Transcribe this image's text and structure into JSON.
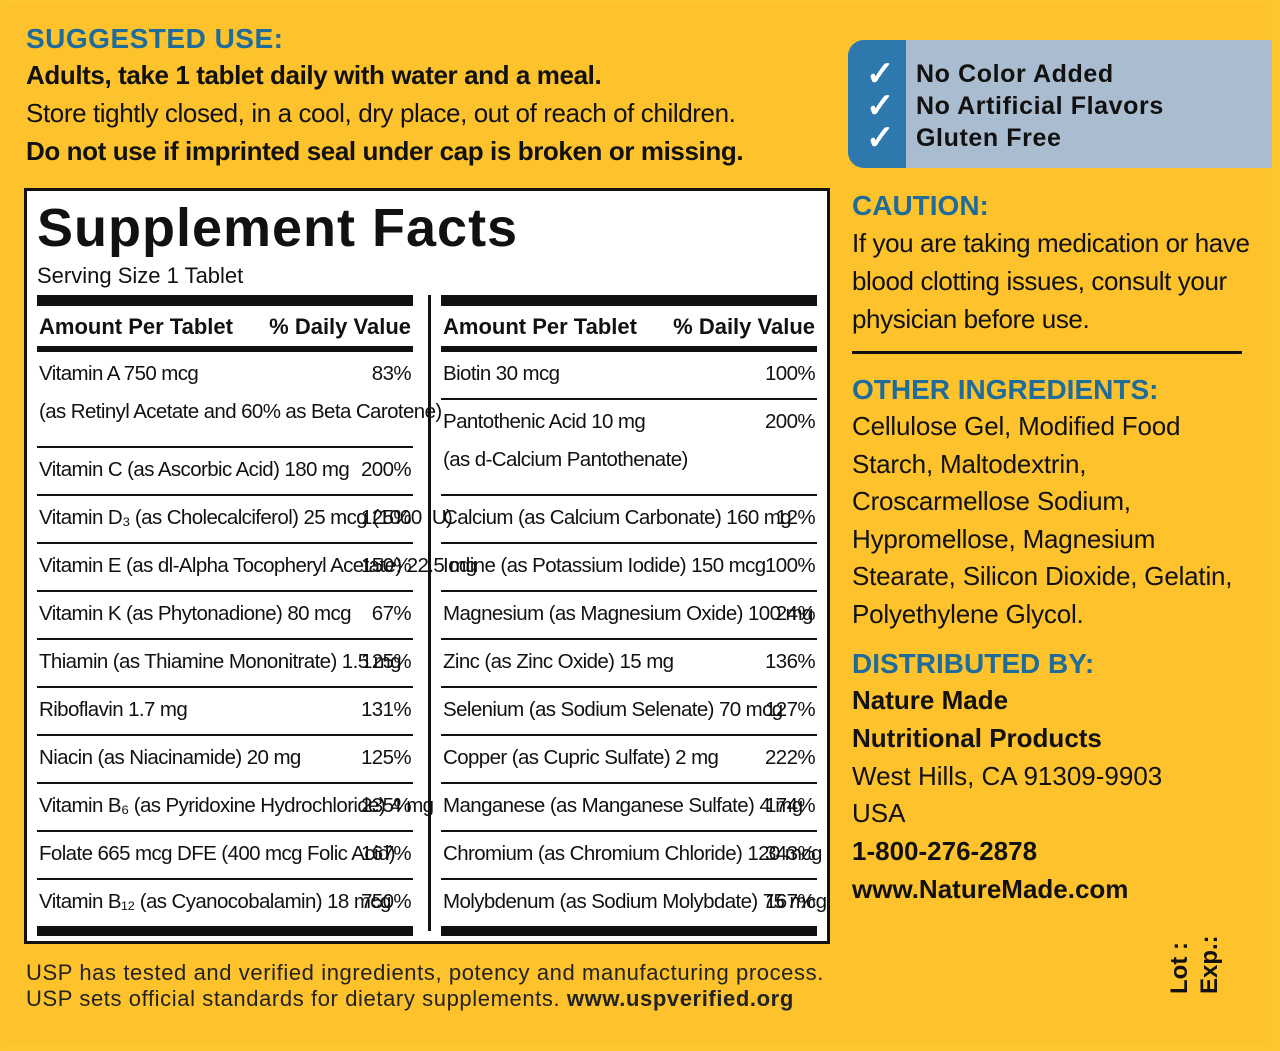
{
  "suggested_use": {
    "title": "SUGGESTED USE:",
    "line1": "Adults, take 1 tablet daily with water and a meal.",
    "line2": "Store tightly closed, in a cool, dry place, out of reach of children.",
    "line3": "Do not use if imprinted seal under cap is broken or missing."
  },
  "claims": [
    {
      "icon": "check-icon",
      "text": "No Color Added"
    },
    {
      "icon": "check-icon",
      "text": "No Artificial Flavors"
    },
    {
      "icon": "check-icon",
      "text": "Gluten Free"
    }
  ],
  "facts": {
    "title": "Supplement Facts",
    "serving_size": "Serving Size 1 Tablet",
    "header_amount": "Amount Per Tablet",
    "header_dv": "% Daily Value",
    "left": [
      {
        "name": "Vitamin A  750 mcg",
        "sub": "(as Retinyl Acetate and 60% as Beta Carotene)",
        "dv": "83%"
      },
      {
        "name": "Vitamin C (as Ascorbic Acid)  180 mg",
        "dv": "200%"
      },
      {
        "name": "Vitamin D₃ (as Cholecalciferol)  25 mcg (1000 IU)",
        "dv": "125%"
      },
      {
        "name": "Vitamin E (as dl-Alpha Tocopheryl Acetate)  22.5 mg",
        "dv": "150%"
      },
      {
        "name": "Vitamin K (as Phytonadione)  80 mcg",
        "dv": "67%"
      },
      {
        "name": "Thiamin (as Thiamine Mononitrate)  1.5 mg",
        "dv": "125%"
      },
      {
        "name": "Riboflavin  1.7 mg",
        "dv": "131%"
      },
      {
        "name": "Niacin (as Niacinamide)  20 mg",
        "dv": "125%"
      },
      {
        "name": "Vitamin B₆ (as Pyridoxine Hydrochloride)  4 mg",
        "dv": "235%"
      },
      {
        "name": "Folate  665 mcg DFE (400 mcg Folic Acid)",
        "dv": "167%"
      },
      {
        "name": "Vitamin B₁₂ (as Cyanocobalamin)  18 mcg",
        "dv": "750%"
      }
    ],
    "right": [
      {
        "name": "Biotin  30 mcg",
        "dv": "100%"
      },
      {
        "name": "Pantothenic Acid  10 mg",
        "sub": "(as d-Calcium Pantothenate)",
        "dv": "200%"
      },
      {
        "name": "Calcium (as Calcium Carbonate)  160 mg",
        "dv": "12%"
      },
      {
        "name": "Iodine (as Potassium Iodide)  150 mcg",
        "dv": "100%"
      },
      {
        "name": "Magnesium (as Magnesium Oxide)  100 mg",
        "dv": "24%"
      },
      {
        "name": "Zinc (as Zinc Oxide)  15 mg",
        "dv": "136%"
      },
      {
        "name": "Selenium (as Sodium Selenate)  70 mcg",
        "dv": "127%"
      },
      {
        "name": "Copper (as Cupric Sulfate)  2 mg",
        "dv": "222%"
      },
      {
        "name": "Manganese (as Manganese Sulfate)  4 mg",
        "dv": "174%"
      },
      {
        "name": "Chromium (as Chromium Chloride)  120 mcg",
        "dv": "343%"
      },
      {
        "name": "Molybdenum (as Sodium Molybdate)  75 mcg",
        "dv": "167%"
      }
    ]
  },
  "caution": {
    "title": "CAUTION:",
    "body": "If you are taking medication or have blood clotting issues, consult your physician before use."
  },
  "other_ingredients": {
    "title": "OTHER INGREDIENTS:",
    "body": "Cellulose Gel, Modified Food Starch, Maltodextrin, Croscarmellose Sodium, Hypromellose, Magnesium Stearate, Silicon Dioxide, Gelatin, Polyethylene Glycol."
  },
  "distributed_by": {
    "title": "DISTRIBUTED BY:",
    "company1": "Nature Made",
    "company2": "Nutritional Products",
    "address": "West Hills, CA 91309-9903",
    "country": "USA",
    "phone": "1-800-276-2878",
    "website": "www.NatureMade.com"
  },
  "usp": {
    "line1": "USP has tested and verified ingredients, potency and manufacturing process.",
    "line2": "USP sets official standards for dietary supplements.",
    "link": "www.uspverified.org"
  },
  "lot_label": "Lot :",
  "exp_label": "Exp.:",
  "colors": {
    "background": "#fdc22c",
    "heading_blue": "#1f6b9a",
    "claims_strip": "#2d78ad",
    "claims_box": "#a9bcd0"
  }
}
